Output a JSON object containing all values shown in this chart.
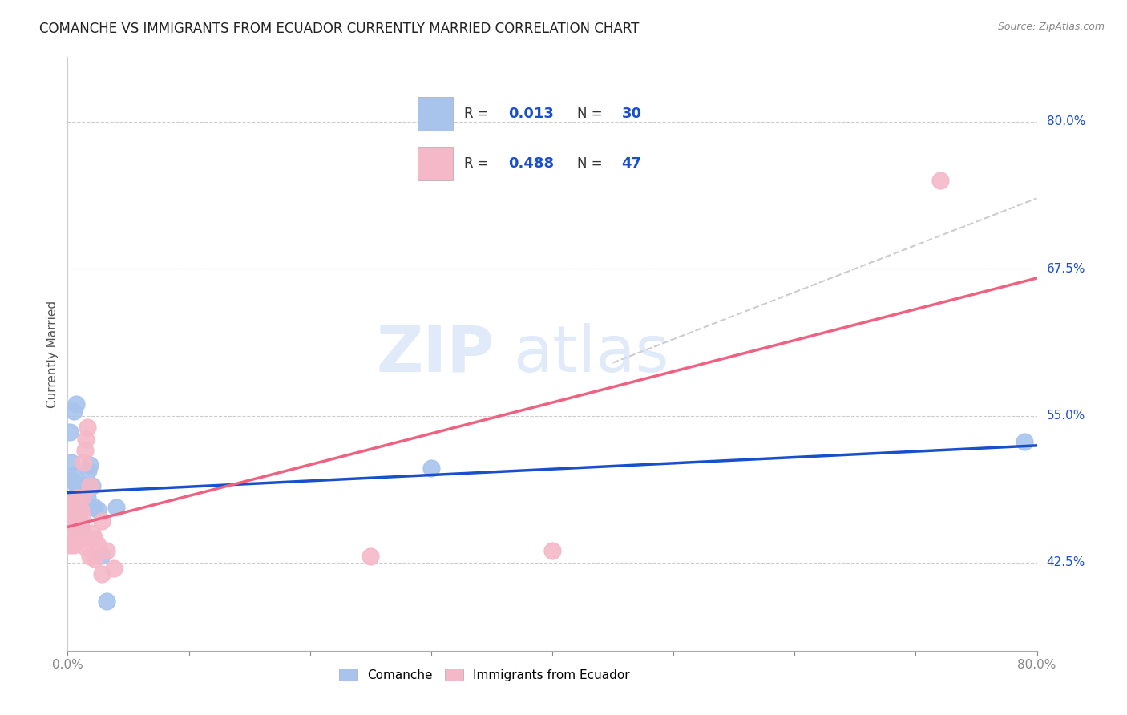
{
  "title": "COMANCHE VS IMMIGRANTS FROM ECUADOR CURRENTLY MARRIED CORRELATION CHART",
  "source": "Source: ZipAtlas.com",
  "ylabel": "Currently Married",
  "xmin": 0.0,
  "xmax": 0.8,
  "ymin": 0.35,
  "ymax": 0.855,
  "right_ytick_labels": [
    "80.0%",
    "67.5%",
    "55.0%",
    "42.5%"
  ],
  "right_ytick_positions": [
    0.8,
    0.675,
    0.55,
    0.425
  ],
  "comanche_R": "0.013",
  "comanche_N": "30",
  "ecuador_R": "0.488",
  "ecuador_N": "47",
  "comanche_color": "#a8c4ed",
  "ecuador_color": "#f4b8c8",
  "comanche_line_color": "#1a4fcc",
  "ecuador_line_color": "#f06080",
  "dashed_line_color": "#cccccc",
  "background_color": "#ffffff",
  "grid_color": "#cccccc",
  "legend_text_color": "#1a4fcc",
  "legend_label_color": "#333333",
  "comanche_x": [
    0.002,
    0.003,
    0.004,
    0.005,
    0.005,
    0.006,
    0.007,
    0.007,
    0.008,
    0.008,
    0.009,
    0.01,
    0.011,
    0.012,
    0.013,
    0.015,
    0.016,
    0.017,
    0.018,
    0.02,
    0.022,
    0.025,
    0.028,
    0.032,
    0.04,
    0.003,
    0.006,
    0.01,
    0.3,
    0.79
  ],
  "comanche_y": [
    0.536,
    0.51,
    0.495,
    0.554,
    0.48,
    0.5,
    0.491,
    0.56,
    0.468,
    0.48,
    0.46,
    0.488,
    0.455,
    0.478,
    0.49,
    0.49,
    0.48,
    0.503,
    0.508,
    0.49,
    0.472,
    0.47,
    0.431,
    0.392,
    0.472,
    0.474,
    0.475,
    0.472,
    0.505,
    0.528
  ],
  "ecuador_x": [
    0.001,
    0.002,
    0.002,
    0.003,
    0.003,
    0.004,
    0.004,
    0.005,
    0.005,
    0.006,
    0.006,
    0.007,
    0.007,
    0.008,
    0.008,
    0.009,
    0.009,
    0.01,
    0.01,
    0.011,
    0.011,
    0.012,
    0.012,
    0.013,
    0.014,
    0.015,
    0.016,
    0.018,
    0.02,
    0.022,
    0.025,
    0.028,
    0.032,
    0.038,
    0.003,
    0.005,
    0.007,
    0.009,
    0.011,
    0.013,
    0.015,
    0.018,
    0.022,
    0.028,
    0.25,
    0.4,
    0.72
  ],
  "ecuador_y": [
    0.46,
    0.45,
    0.44,
    0.465,
    0.45,
    0.46,
    0.455,
    0.445,
    0.44,
    0.455,
    0.45,
    0.46,
    0.465,
    0.48,
    0.475,
    0.455,
    0.45,
    0.46,
    0.455,
    0.455,
    0.47,
    0.465,
    0.48,
    0.51,
    0.52,
    0.53,
    0.54,
    0.49,
    0.45,
    0.445,
    0.44,
    0.46,
    0.435,
    0.42,
    0.475,
    0.478,
    0.472,
    0.468,
    0.455,
    0.445,
    0.438,
    0.43,
    0.428,
    0.415,
    0.43,
    0.435,
    0.75
  ]
}
